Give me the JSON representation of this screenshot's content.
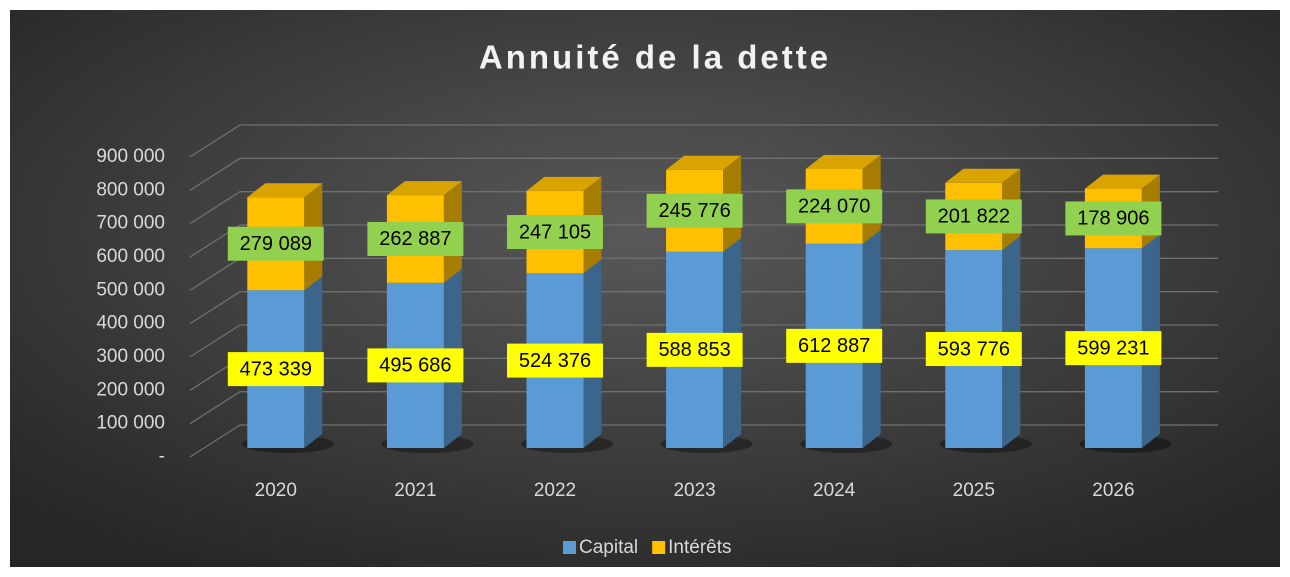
{
  "chart_data": {
    "type": "bar3d_stacked",
    "title": "Annuité de la dette",
    "categories": [
      "2020",
      "2021",
      "2022",
      "2023",
      "2024",
      "2025",
      "2026"
    ],
    "series": [
      {
        "name": "Capital",
        "color": "#5b9bd5",
        "label_color": "#ffff00",
        "values": [
          473339,
          495686,
          524376,
          588853,
          612887,
          593776,
          599231
        ],
        "value_labels": [
          "473 339",
          "495 686",
          "524 376",
          "588 853",
          "612 887",
          "593 776",
          "599 231"
        ]
      },
      {
        "name": "Intérêts",
        "color": "#ffc000",
        "label_color": "#92d050",
        "values": [
          279089,
          262887,
          247105,
          245776,
          224070,
          201822,
          178906
        ],
        "value_labels": [
          "279 089",
          "262 887",
          "247 105",
          "245 776",
          "224 070",
          "201 822",
          "178 906"
        ]
      }
    ],
    "ylim": [
      0,
      900000
    ],
    "yticks": [
      {
        "value": 0,
        "label": "-"
      },
      {
        "value": 100000,
        "label": "100 000"
      },
      {
        "value": 200000,
        "label": "200 000"
      },
      {
        "value": 300000,
        "label": "300 000"
      },
      {
        "value": 400000,
        "label": "400 000"
      },
      {
        "value": 500000,
        "label": "500 000"
      },
      {
        "value": 600000,
        "label": "600 000"
      },
      {
        "value": 700000,
        "label": "700 000"
      },
      {
        "value": 800000,
        "label": "800 000"
      },
      {
        "value": 900000,
        "label": "900 000"
      }
    ],
    "grid": true,
    "legend": "bottom"
  }
}
